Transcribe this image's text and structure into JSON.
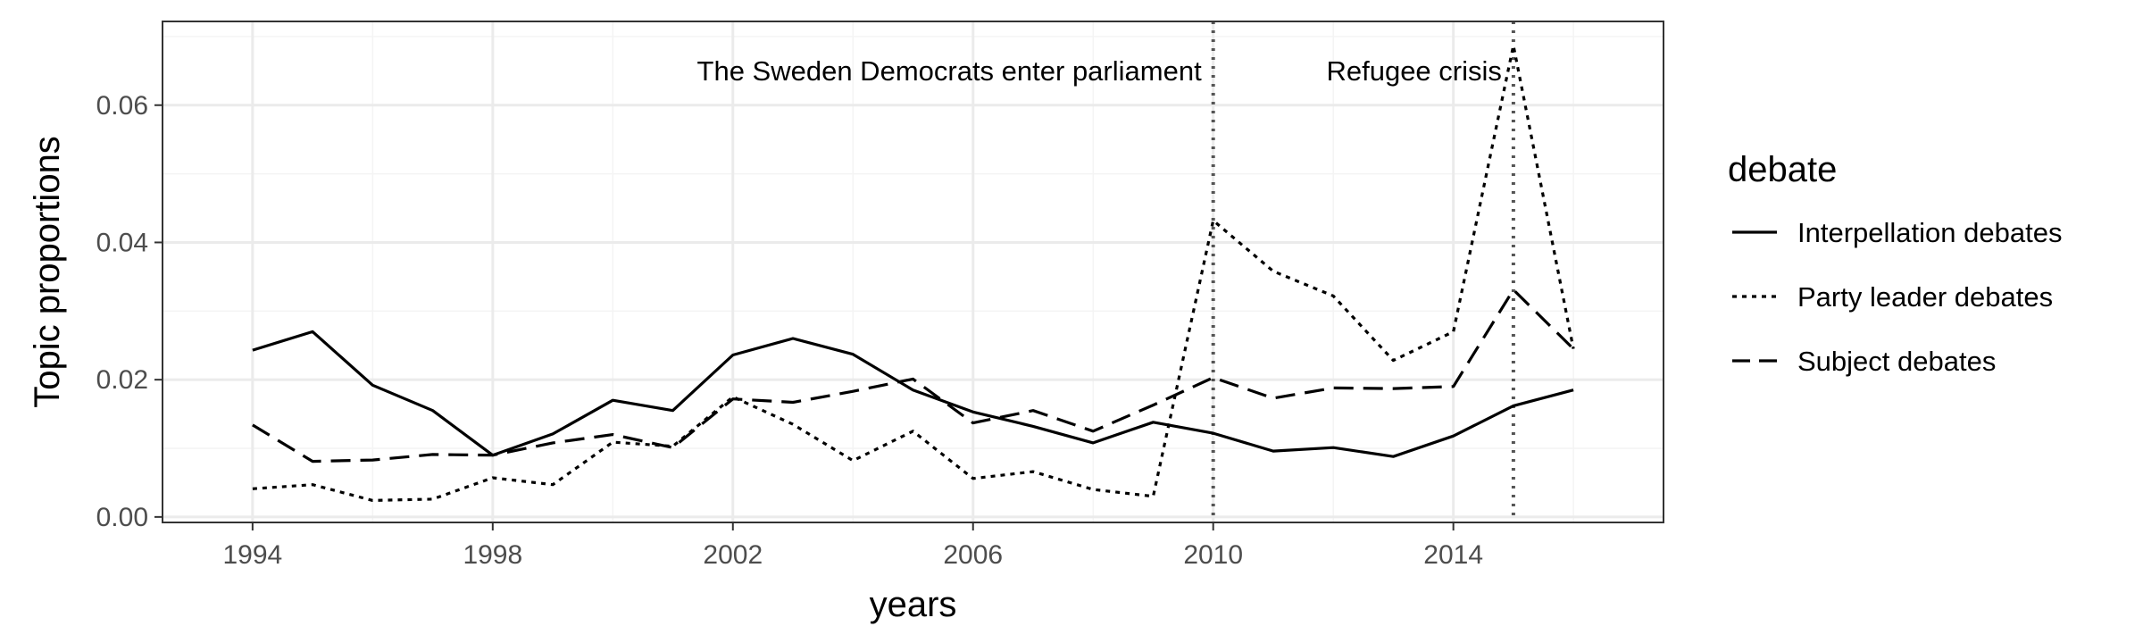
{
  "chart_data": {
    "type": "line",
    "title": "",
    "xlabel": "years",
    "ylabel": "Topic proportions",
    "xlim": [
      1992.5,
      2017.5
    ],
    "ylim": [
      -0.0008,
      0.0722
    ],
    "x_ticks": [
      1994,
      1998,
      2002,
      2006,
      2010,
      2014
    ],
    "x_tick_labels": [
      "1994",
      "1998",
      "2002",
      "2006",
      "2010",
      "2014"
    ],
    "y_ticks": [
      0.0,
      0.02,
      0.04,
      0.06
    ],
    "y_tick_labels": [
      "0.00",
      "0.02",
      "0.04",
      "0.06"
    ],
    "grid": true,
    "legend": {
      "title": "debate",
      "placement": "right"
    },
    "x": [
      1994,
      1995,
      1996,
      1997,
      1998,
      1999,
      2000,
      2001,
      2002,
      2003,
      2004,
      2005,
      2006,
      2007,
      2008,
      2009,
      2010,
      2011,
      2012,
      2013,
      2014,
      2015,
      2016
    ],
    "series": [
      {
        "name": "Interpellation debates",
        "linestyle": "solid",
        "values": [
          0.0243,
          0.027,
          0.0192,
          0.0155,
          0.009,
          0.0121,
          0.017,
          0.0155,
          0.0236,
          0.026,
          0.0237,
          0.0185,
          0.0153,
          0.0132,
          0.0108,
          0.0138,
          0.0122,
          0.0096,
          0.0101,
          0.0088,
          0.0118,
          0.0162,
          0.0185
        ]
      },
      {
        "name": "Party leader debates",
        "linestyle": "dotted",
        "values": [
          0.0041,
          0.0047,
          0.0024,
          0.0026,
          0.0057,
          0.0047,
          0.0109,
          0.0103,
          0.0175,
          0.0135,
          0.0082,
          0.0125,
          0.0056,
          0.0066,
          0.004,
          0.003,
          0.0432,
          0.0358,
          0.0322,
          0.0228,
          0.027,
          0.0687,
          0.0245
        ]
      },
      {
        "name": "Subject debates",
        "linestyle": "dashed",
        "values": [
          0.0134,
          0.0081,
          0.0083,
          0.0091,
          0.009,
          0.0108,
          0.012,
          0.0101,
          0.0172,
          0.0167,
          0.0183,
          0.0201,
          0.0137,
          0.0155,
          0.0125,
          0.0163,
          0.0203,
          0.0173,
          0.0188,
          0.0187,
          0.019,
          0.0331,
          0.0245
        ]
      }
    ],
    "vlines": [
      2010,
      2015
    ],
    "annotations": [
      {
        "text": "The Sweden Democrats enter parliament",
        "x": 2010,
        "align": "right"
      },
      {
        "text": "Refugee crisis",
        "x": 2015,
        "align": "right"
      }
    ]
  },
  "colors": {
    "line": "#000000",
    "vline": "#555555",
    "grid_major": "#ebebeb",
    "grid_minor": "#f4f4f4",
    "panel_border": "#333333",
    "tick_text": "#4d4d4d"
  }
}
